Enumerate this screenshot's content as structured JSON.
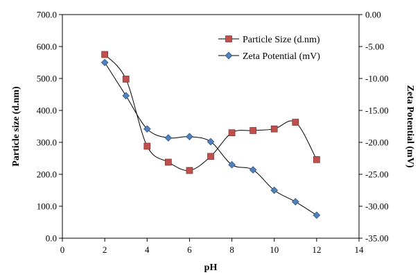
{
  "chart_data": {
    "type": "line",
    "xlabel": "pH",
    "ylabel": "Particle size (d.nm)",
    "y2label": "Zeta Potential (mV)",
    "xlim": [
      0,
      14
    ],
    "xticks": [
      0,
      2,
      4,
      6,
      8,
      10,
      12,
      14
    ],
    "ylim": [
      0,
      700
    ],
    "yticks": [
      "0.0",
      "100.0",
      "200.0",
      "300.0",
      "400.0",
      "500.0",
      "600.0",
      "700.0"
    ],
    "y2lim": [
      -35,
      0
    ],
    "y2ticks": [
      "0.00",
      "-5.00",
      "-10.00",
      "-15.00",
      "-20.00",
      "-25.00",
      "-30.00",
      "-35.00"
    ],
    "grid": false,
    "legend_position": "top-right",
    "series": [
      {
        "name": "Particle Size (d.nm)",
        "axis": "left",
        "marker": "square",
        "color": "#c0504d",
        "x": [
          2,
          3,
          4,
          5,
          6,
          7,
          8,
          9,
          10,
          11,
          12
        ],
        "values": [
          575,
          498,
          288,
          238,
          212,
          256,
          330,
          337,
          342,
          363,
          246
        ]
      },
      {
        "name": "Zeta Potential (mV)",
        "axis": "right",
        "marker": "diamond",
        "color": "#4f81bd",
        "x": [
          2,
          3,
          4,
          5,
          6,
          7,
          8,
          9,
          10,
          11,
          12
        ],
        "values": [
          -7.5,
          -12.7,
          -17.9,
          -19.3,
          -19.1,
          -19.9,
          -23.5,
          -24.3,
          -27.5,
          -29.3,
          -31.4
        ]
      }
    ]
  }
}
